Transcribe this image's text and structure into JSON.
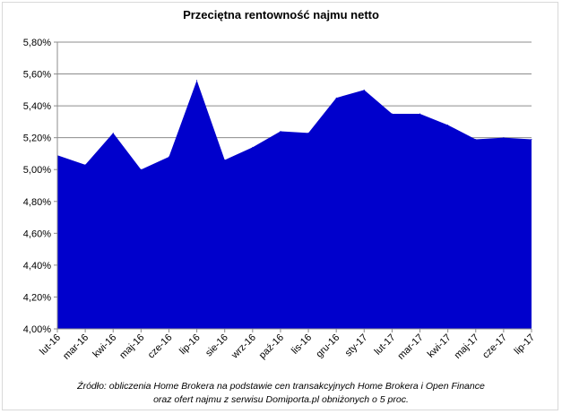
{
  "chart_data": {
    "type": "area",
    "title": "Przeciętna rentowność najmu netto",
    "categories": [
      "lut-16",
      "mar-16",
      "kwi-16",
      "maj-16",
      "cze-16",
      "lip-16",
      "sie-16",
      "wrz-16",
      "paź-16",
      "lis-16",
      "gru-16",
      "sty-17",
      "lut-17",
      "mar-17",
      "kwi-17",
      "maj-17",
      "cze-17",
      "lip-17"
    ],
    "values": [
      5.09,
      5.03,
      5.23,
      5.0,
      5.08,
      5.56,
      5.06,
      5.14,
      5.24,
      5.23,
      5.45,
      5.5,
      5.35,
      5.35,
      5.28,
      5.19,
      5.2,
      5.19
    ],
    "ylim": [
      4.0,
      5.8
    ],
    "yticks": [
      "4,00%",
      "4,20%",
      "4,40%",
      "4,60%",
      "4,80%",
      "5,00%",
      "5,20%",
      "5,40%",
      "5,60%",
      "5,80%"
    ],
    "ytick_values": [
      4.0,
      4.2,
      4.4,
      4.6,
      4.8,
      5.0,
      5.2,
      5.4,
      5.6,
      5.8
    ],
    "grid": true,
    "fill_color": "#0000cc"
  },
  "source": {
    "line1": "Źródło: obliczenia Home Brokera na podstawie cen transakcyjnych Home Brokera i Open Finance",
    "line2": "oraz ofert najmu z serwisu Domiporta.pl obniżonych o 5 proc."
  }
}
